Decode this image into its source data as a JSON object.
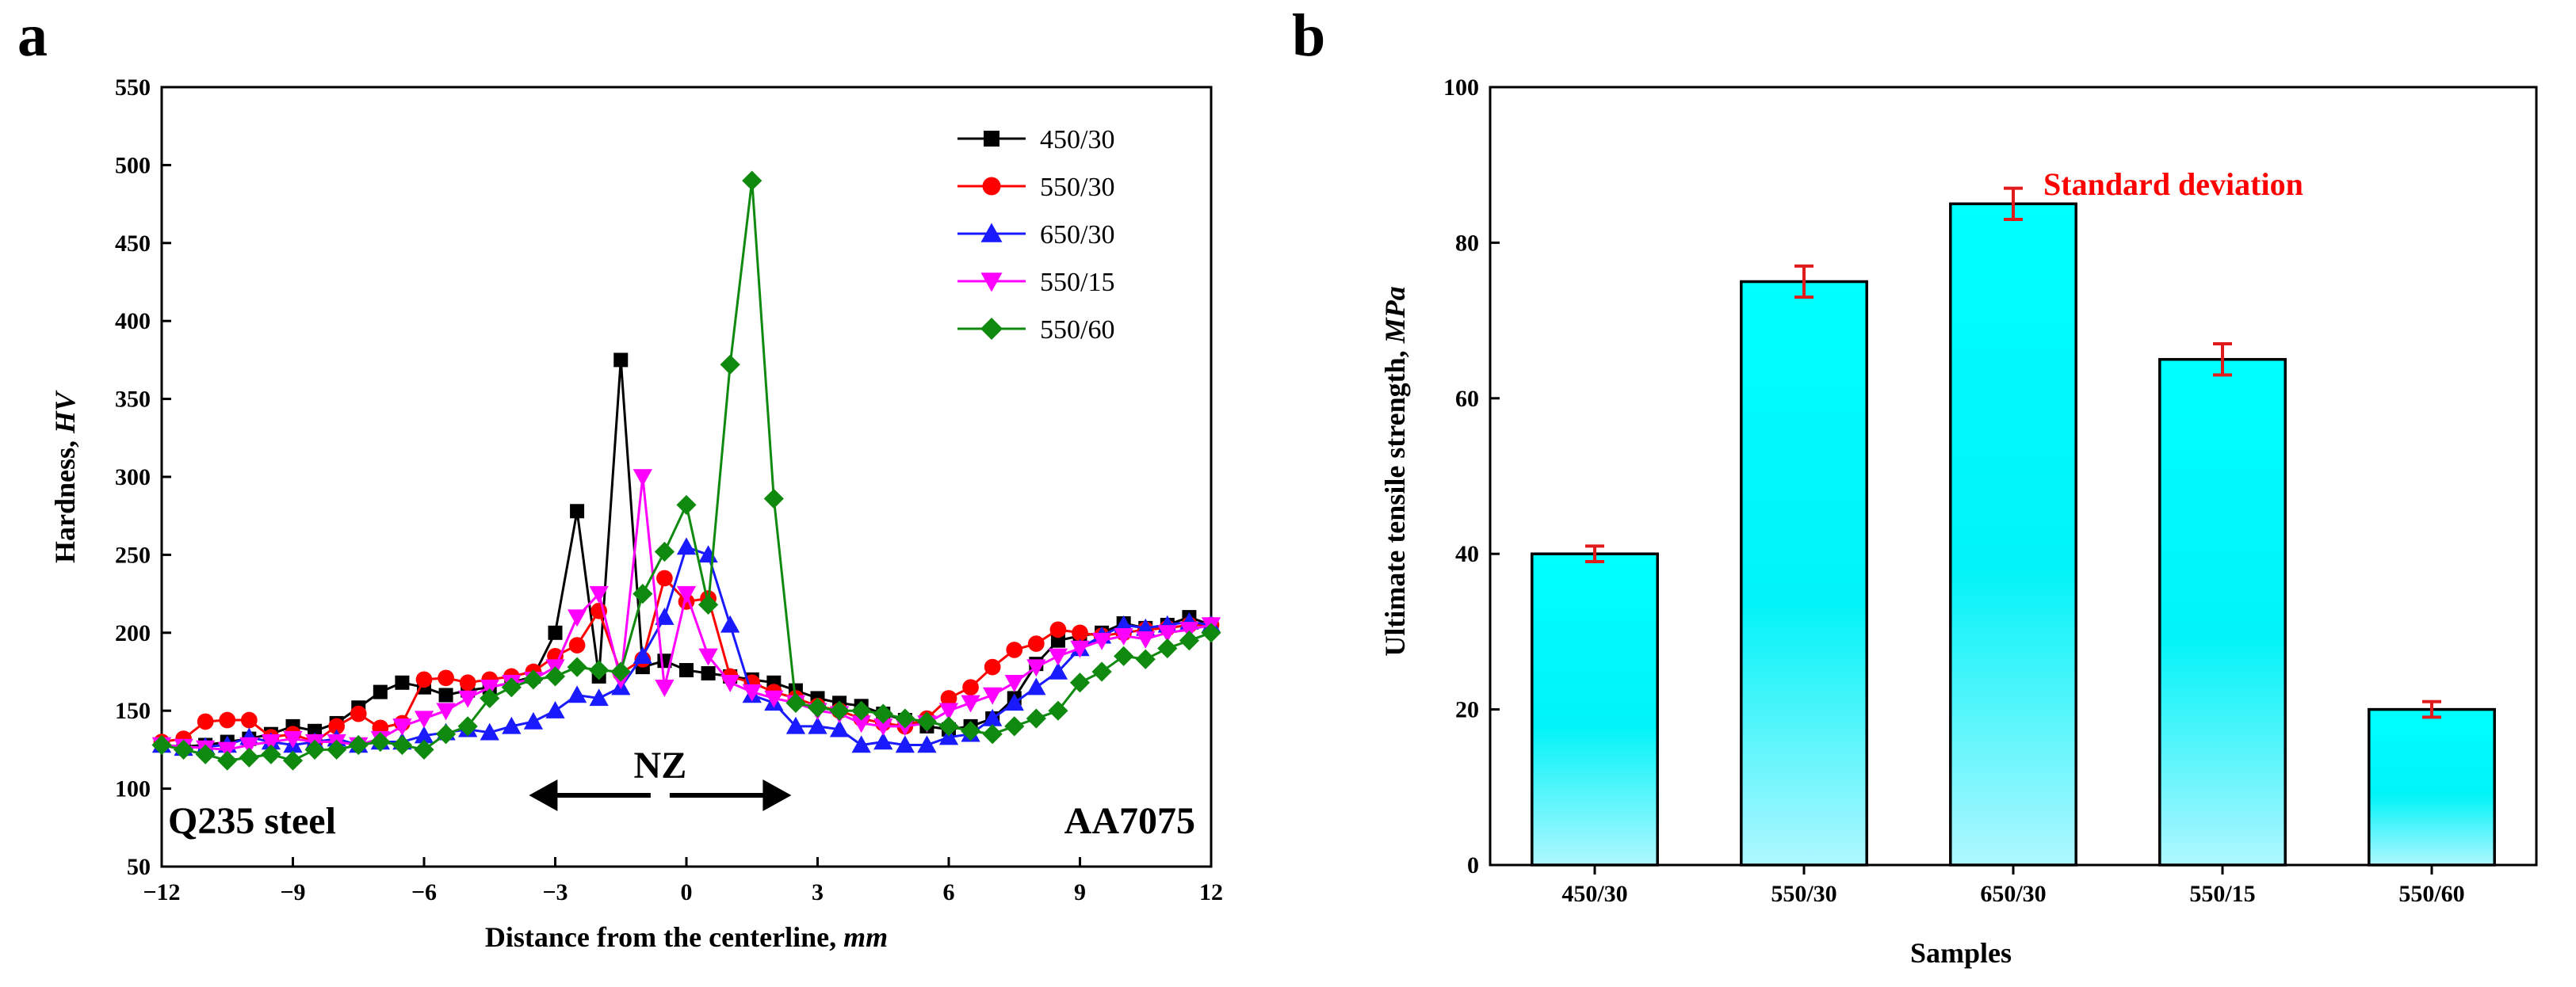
{
  "chart_data": [
    {
      "panel_label": "a",
      "type": "line",
      "xlabel": "Distance from the centerline, ",
      "xlabel_unit": "mm",
      "ylabel": "Hardness, ",
      "ylabel_unit": "HV",
      "xlim": [
        -12,
        12
      ],
      "ylim": [
        50,
        550
      ],
      "xticks": [
        -12,
        -9,
        -6,
        -3,
        0,
        3,
        6,
        9,
        12
      ],
      "yticks": [
        50,
        100,
        150,
        200,
        250,
        300,
        350,
        400,
        450,
        500,
        550
      ],
      "xtick_labels": [
        "−12",
        "−9",
        "−6",
        "−3",
        "0",
        "3",
        "6",
        "9",
        "12"
      ],
      "legend_position": "top-right",
      "annotations": {
        "left_material": "Q235 steel",
        "right_material": "AA7075",
        "zone": "NZ",
        "zone_arrow_from": -3.6,
        "zone_arrow_to": 2.4
      },
      "series": [
        {
          "name": "450/30",
          "color": "#000000",
          "marker": "square",
          "x": [
            -12,
            -11.5,
            -11,
            -10.5,
            -10,
            -9.5,
            -9,
            -8.5,
            -8,
            -7.5,
            -7,
            -6.5,
            -6,
            -5.5,
            -5,
            -4.5,
            -4,
            -3.5,
            -3,
            -2.5,
            -2,
            -1.5,
            -1,
            -0.5,
            0,
            0.5,
            1,
            1.5,
            2,
            2.5,
            3,
            3.5,
            4,
            4.5,
            5,
            5.5,
            6,
            6.5,
            7,
            7.5,
            8,
            8.5,
            9,
            9.5,
            10,
            10.5,
            11,
            11.5,
            12
          ],
          "y": [
            128,
            127,
            128,
            130,
            132,
            135,
            140,
            137,
            142,
            152,
            162,
            168,
            165,
            160,
            163,
            165,
            168,
            172,
            200,
            278,
            172,
            375,
            178,
            182,
            176,
            174,
            172,
            170,
            168,
            163,
            158,
            155,
            153,
            148,
            144,
            140,
            138,
            140,
            145,
            158,
            180,
            195,
            198,
            200,
            206,
            203,
            205,
            210,
            205
          ]
        },
        {
          "name": "550/30",
          "color": "#ff0000",
          "marker": "circle",
          "x": [
            -12,
            -11.5,
            -11,
            -10.5,
            -10,
            -9.5,
            -9,
            -8.5,
            -8,
            -7.5,
            -7,
            -6.5,
            -6,
            -5.5,
            -5,
            -4.5,
            -4,
            -3.5,
            -3,
            -2.5,
            -2,
            -1.5,
            -1,
            -0.5,
            0,
            0.5,
            1,
            1.5,
            2,
            2.5,
            3,
            3.5,
            4,
            4.5,
            5,
            5.5,
            6,
            6.5,
            7,
            7.5,
            8,
            8.5,
            9,
            9.5,
            10,
            10.5,
            11,
            11.5,
            12
          ],
          "y": [
            130,
            132,
            143,
            144,
            144,
            133,
            135,
            130,
            140,
            148,
            139,
            142,
            170,
            171,
            168,
            170,
            172,
            175,
            185,
            192,
            214,
            174,
            183,
            235,
            220,
            222,
            172,
            168,
            162,
            158,
            153,
            150,
            145,
            142,
            140,
            145,
            158,
            165,
            178,
            189,
            193,
            202,
            200,
            198,
            200,
            202,
            203,
            205,
            205
          ]
        },
        {
          "name": "650/30",
          "color": "#1a1aff",
          "marker": "triangle-up",
          "x": [
            -12,
            -11.5,
            -11,
            -10.5,
            -10,
            -9.5,
            -9,
            -8.5,
            -8,
            -7.5,
            -7,
            -6.5,
            -6,
            -5.5,
            -5,
            -4.5,
            -4,
            -3.5,
            -3,
            -2.5,
            -2,
            -1.5,
            -1,
            -0.5,
            0,
            0.5,
            1,
            1.5,
            2,
            2.5,
            3,
            3.5,
            4,
            4.5,
            5,
            5.5,
            6,
            6.5,
            7,
            7.5,
            8,
            8.5,
            9,
            9.5,
            10,
            10.5,
            11,
            11.5,
            12
          ],
          "y": [
            128,
            126,
            127,
            128,
            133,
            130,
            128,
            130,
            132,
            128,
            130,
            130,
            134,
            136,
            138,
            136,
            140,
            143,
            150,
            160,
            158,
            165,
            185,
            210,
            255,
            250,
            205,
            160,
            155,
            140,
            140,
            138,
            128,
            130,
            128,
            128,
            133,
            135,
            145,
            155,
            165,
            175,
            190,
            198,
            205,
            203,
            205,
            207,
            205
          ]
        },
        {
          "name": "550/15",
          "color": "#ff00ff",
          "marker": "triangle-down",
          "x": [
            -12,
            -11.5,
            -11,
            -10.5,
            -10,
            -9.5,
            -9,
            -8.5,
            -8,
            -7.5,
            -7,
            -6.5,
            -6,
            -5.5,
            -5,
            -4.5,
            -4,
            -3.5,
            -3,
            -2.5,
            -2,
            -1.5,
            -1,
            -0.5,
            0,
            0.5,
            1,
            1.5,
            2,
            2.5,
            3,
            3.5,
            4,
            4.5,
            5,
            5.5,
            6,
            6.5,
            7,
            7.5,
            8,
            8.5,
            9,
            9.5,
            10,
            10.5,
            11,
            11.5,
            12
          ],
          "y": [
            128,
            127,
            126,
            125,
            128,
            130,
            132,
            130,
            130,
            128,
            132,
            140,
            145,
            150,
            158,
            165,
            168,
            170,
            178,
            210,
            225,
            170,
            300,
            165,
            225,
            185,
            168,
            162,
            158,
            155,
            150,
            148,
            142,
            140,
            140,
            142,
            150,
            155,
            160,
            168,
            178,
            185,
            190,
            195,
            198,
            196,
            200,
            202,
            205
          ]
        },
        {
          "name": "550/60",
          "color": "#0f8a0f",
          "marker": "diamond",
          "x": [
            -12,
            -11.5,
            -11,
            -10.5,
            -10,
            -9.5,
            -9,
            -8.5,
            -8,
            -7.5,
            -7,
            -6.5,
            -6,
            -5.5,
            -5,
            -4.5,
            -4,
            -3.5,
            -3,
            -2.5,
            -2,
            -1.5,
            -1,
            -0.5,
            0,
            0.5,
            1,
            1.5,
            2,
            2.5,
            3,
            3.5,
            4,
            4.5,
            5,
            5.5,
            6,
            6.5,
            7,
            7.5,
            8,
            8.5,
            9,
            9.5,
            10,
            10.5,
            11,
            11.5,
            12
          ],
          "y": [
            128,
            125,
            122,
            118,
            120,
            122,
            118,
            125,
            125,
            128,
            130,
            128,
            125,
            135,
            140,
            158,
            165,
            170,
            172,
            178,
            176,
            175,
            225,
            252,
            282,
            218,
            372,
            490,
            286,
            155,
            152,
            150,
            150,
            148,
            145,
            143,
            140,
            137,
            135,
            140,
            145,
            150,
            168,
            175,
            185,
            183,
            190,
            195,
            200
          ]
        }
      ]
    },
    {
      "panel_label": "b",
      "type": "bar",
      "categories": [
        "450/30",
        "550/30",
        "650/30",
        "550/15",
        "550/60"
      ],
      "values": [
        40,
        75,
        85,
        65,
        20
      ],
      "errors": [
        1,
        2,
        2,
        2,
        1
      ],
      "xlabel": "Samples",
      "ylabel": "Ultimate tensile strength, ",
      "ylabel_unit": "MPa",
      "ylim": [
        0,
        100
      ],
      "yticks": [
        0,
        20,
        40,
        60,
        80,
        100
      ],
      "annotation": "Standard deviation",
      "bar_color_top": "#00ffff",
      "bar_color_bottom": "#aff7ff",
      "error_color": "#e01b1b",
      "annotation_color": "#ff0000"
    }
  ]
}
